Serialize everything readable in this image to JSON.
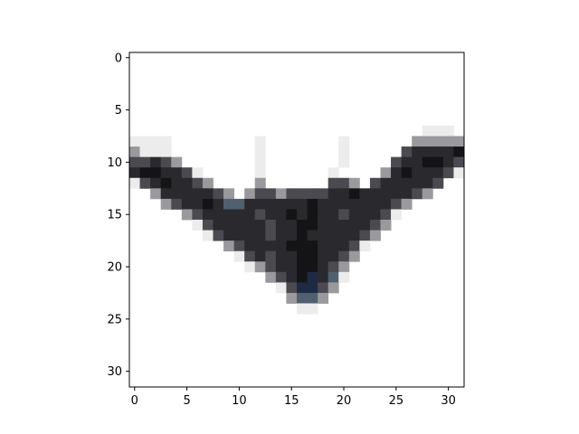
{
  "image": {
    "description_free": true,
    "grid_size": [
      32,
      32
    ],
    "x_ticks": [
      {
        "value": 0,
        "label": "0"
      },
      {
        "value": 5,
        "label": "5"
      },
      {
        "value": 10,
        "label": "10"
      },
      {
        "value": 15,
        "label": "15"
      },
      {
        "value": 20,
        "label": "20"
      },
      {
        "value": 25,
        "label": "25"
      },
      {
        "value": 30,
        "label": "30"
      }
    ],
    "y_ticks": [
      {
        "value": 0,
        "label": "0"
      },
      {
        "value": 5,
        "label": "5"
      },
      {
        "value": 10,
        "label": "10"
      },
      {
        "value": 15,
        "label": "15"
      },
      {
        "value": 20,
        "label": "20"
      },
      {
        "value": 25,
        "label": "25"
      },
      {
        "value": 30,
        "label": "30"
      }
    ],
    "colors": {
      "background": "#ffffff",
      "dark": "#2a2a2e",
      "darkest": "#141416",
      "mid": "#4a4a50",
      "light": "#9a9a9e",
      "faint": "#ececec",
      "blue_tint": "#1e2a44",
      "slate": "#50606e"
    },
    "pixels": [
      [
        0,
        8,
        "faint"
      ],
      [
        1,
        8,
        "faint"
      ],
      [
        2,
        8,
        "faint"
      ],
      [
        3,
        8,
        "faint"
      ],
      [
        12,
        8,
        "faint"
      ],
      [
        20,
        8,
        "faint"
      ],
      [
        27,
        8,
        "faint"
      ],
      [
        28,
        8,
        "faint"
      ],
      [
        29,
        8,
        "faint"
      ],
      [
        30,
        8,
        "faint"
      ],
      [
        28,
        7,
        "faint"
      ],
      [
        29,
        7,
        "faint"
      ],
      [
        30,
        7,
        "faint"
      ],
      [
        27,
        8,
        "light"
      ],
      [
        28,
        8,
        "light"
      ],
      [
        29,
        8,
        "light"
      ],
      [
        30,
        8,
        "light"
      ],
      [
        31,
        8,
        "light"
      ],
      [
        0,
        9,
        "light"
      ],
      [
        1,
        9,
        "faint"
      ],
      [
        2,
        9,
        "faint"
      ],
      [
        3,
        9,
        "faint"
      ],
      [
        12,
        9,
        "faint"
      ],
      [
        20,
        9,
        "faint"
      ],
      [
        26,
        9,
        "mid"
      ],
      [
        27,
        9,
        "dark"
      ],
      [
        28,
        9,
        "dark"
      ],
      [
        29,
        9,
        "dark"
      ],
      [
        30,
        9,
        "dark"
      ],
      [
        31,
        9,
        "darkest"
      ],
      [
        0,
        10,
        "mid"
      ],
      [
        1,
        10,
        "mid"
      ],
      [
        2,
        10,
        "dark"
      ],
      [
        3,
        10,
        "mid"
      ],
      [
        4,
        10,
        "light"
      ],
      [
        12,
        10,
        "faint"
      ],
      [
        20,
        10,
        "faint"
      ],
      [
        25,
        10,
        "mid"
      ],
      [
        26,
        10,
        "dark"
      ],
      [
        27,
        10,
        "dark"
      ],
      [
        28,
        10,
        "darkest"
      ],
      [
        29,
        10,
        "darkest"
      ],
      [
        30,
        10,
        "dark"
      ],
      [
        31,
        10,
        "mid"
      ],
      [
        0,
        11,
        "dark"
      ],
      [
        1,
        11,
        "darkest"
      ],
      [
        2,
        11,
        "darkest"
      ],
      [
        3,
        11,
        "dark"
      ],
      [
        4,
        11,
        "dark"
      ],
      [
        5,
        11,
        "mid"
      ],
      [
        6,
        11,
        "faint"
      ],
      [
        12,
        11,
        "faint"
      ],
      [
        19,
        11,
        "faint"
      ],
      [
        24,
        11,
        "light"
      ],
      [
        25,
        11,
        "dark"
      ],
      [
        26,
        11,
        "darkest"
      ],
      [
        27,
        11,
        "dark"
      ],
      [
        28,
        11,
        "dark"
      ],
      [
        29,
        11,
        "dark"
      ],
      [
        30,
        11,
        "mid"
      ],
      [
        31,
        11,
        "faint"
      ],
      [
        0,
        12,
        "faint"
      ],
      [
        1,
        12,
        "mid"
      ],
      [
        2,
        12,
        "dark"
      ],
      [
        3,
        12,
        "darkest"
      ],
      [
        4,
        12,
        "dark"
      ],
      [
        5,
        12,
        "dark"
      ],
      [
        6,
        12,
        "mid"
      ],
      [
        7,
        12,
        "light"
      ],
      [
        12,
        12,
        "light"
      ],
      [
        19,
        12,
        "mid"
      ],
      [
        20,
        12,
        "mid"
      ],
      [
        21,
        12,
        "light"
      ],
      [
        23,
        12,
        "mid"
      ],
      [
        24,
        12,
        "dark"
      ],
      [
        25,
        12,
        "dark"
      ],
      [
        26,
        12,
        "dark"
      ],
      [
        27,
        12,
        "dark"
      ],
      [
        28,
        12,
        "dark"
      ],
      [
        29,
        12,
        "mid"
      ],
      [
        2,
        13,
        "light"
      ],
      [
        3,
        13,
        "dark"
      ],
      [
        4,
        13,
        "dark"
      ],
      [
        5,
        13,
        "dark"
      ],
      [
        6,
        13,
        "dark"
      ],
      [
        7,
        13,
        "dark"
      ],
      [
        8,
        13,
        "mid"
      ],
      [
        9,
        13,
        "light"
      ],
      [
        11,
        13,
        "light"
      ],
      [
        12,
        13,
        "mid"
      ],
      [
        13,
        13,
        "mid"
      ],
      [
        14,
        13,
        "light"
      ],
      [
        15,
        13,
        "mid"
      ],
      [
        16,
        13,
        "mid"
      ],
      [
        17,
        13,
        "mid"
      ],
      [
        18,
        13,
        "mid"
      ],
      [
        19,
        13,
        "dark"
      ],
      [
        20,
        13,
        "dark"
      ],
      [
        21,
        13,
        "darkest"
      ],
      [
        22,
        13,
        "dark"
      ],
      [
        23,
        13,
        "dark"
      ],
      [
        24,
        13,
        "dark"
      ],
      [
        25,
        13,
        "dark"
      ],
      [
        26,
        13,
        "dark"
      ],
      [
        27,
        13,
        "mid"
      ],
      [
        28,
        13,
        "light"
      ],
      [
        3,
        14,
        "light"
      ],
      [
        4,
        14,
        "mid"
      ],
      [
        5,
        14,
        "dark"
      ],
      [
        6,
        14,
        "dark"
      ],
      [
        7,
        14,
        "darkest"
      ],
      [
        8,
        14,
        "dark"
      ],
      [
        9,
        14,
        "slate"
      ],
      [
        10,
        14,
        "slate"
      ],
      [
        11,
        14,
        "dark"
      ],
      [
        12,
        14,
        "dark"
      ],
      [
        13,
        14,
        "dark"
      ],
      [
        14,
        14,
        "dark"
      ],
      [
        15,
        14,
        "dark"
      ],
      [
        16,
        14,
        "dark"
      ],
      [
        17,
        14,
        "darkest"
      ],
      [
        18,
        14,
        "dark"
      ],
      [
        19,
        14,
        "dark"
      ],
      [
        20,
        14,
        "dark"
      ],
      [
        21,
        14,
        "dark"
      ],
      [
        22,
        14,
        "dark"
      ],
      [
        23,
        14,
        "dark"
      ],
      [
        24,
        14,
        "dark"
      ],
      [
        25,
        14,
        "mid"
      ],
      [
        26,
        14,
        "light"
      ],
      [
        5,
        15,
        "light"
      ],
      [
        6,
        15,
        "mid"
      ],
      [
        7,
        15,
        "dark"
      ],
      [
        8,
        15,
        "dark"
      ],
      [
        9,
        15,
        "dark"
      ],
      [
        10,
        15,
        "dark"
      ],
      [
        11,
        15,
        "dark"
      ],
      [
        12,
        15,
        "mid"
      ],
      [
        13,
        15,
        "dark"
      ],
      [
        14,
        15,
        "dark"
      ],
      [
        15,
        15,
        "darkest"
      ],
      [
        16,
        15,
        "dark"
      ],
      [
        17,
        15,
        "darkest"
      ],
      [
        18,
        15,
        "dark"
      ],
      [
        19,
        15,
        "dark"
      ],
      [
        20,
        15,
        "mid"
      ],
      [
        21,
        15,
        "dark"
      ],
      [
        22,
        15,
        "dark"
      ],
      [
        23,
        15,
        "dark"
      ],
      [
        24,
        15,
        "mid"
      ],
      [
        25,
        15,
        "faint"
      ],
      [
        6,
        16,
        "faint"
      ],
      [
        7,
        16,
        "mid"
      ],
      [
        8,
        16,
        "dark"
      ],
      [
        9,
        16,
        "dark"
      ],
      [
        10,
        16,
        "dark"
      ],
      [
        11,
        16,
        "dark"
      ],
      [
        12,
        16,
        "dark"
      ],
      [
        13,
        16,
        "mid"
      ],
      [
        14,
        16,
        "dark"
      ],
      [
        15,
        16,
        "dark"
      ],
      [
        16,
        16,
        "darkest"
      ],
      [
        17,
        16,
        "darkest"
      ],
      [
        18,
        16,
        "dark"
      ],
      [
        19,
        16,
        "dark"
      ],
      [
        20,
        16,
        "dark"
      ],
      [
        21,
        16,
        "dark"
      ],
      [
        22,
        16,
        "dark"
      ],
      [
        23,
        16,
        "mid"
      ],
      [
        24,
        16,
        "light"
      ],
      [
        7,
        17,
        "faint"
      ],
      [
        8,
        17,
        "mid"
      ],
      [
        9,
        17,
        "dark"
      ],
      [
        10,
        17,
        "dark"
      ],
      [
        11,
        17,
        "dark"
      ],
      [
        12,
        17,
        "dark"
      ],
      [
        13,
        17,
        "mid"
      ],
      [
        14,
        17,
        "dark"
      ],
      [
        15,
        17,
        "dark"
      ],
      [
        16,
        17,
        "darkest"
      ],
      [
        17,
        17,
        "dark"
      ],
      [
        18,
        17,
        "dark"
      ],
      [
        19,
        17,
        "dark"
      ],
      [
        20,
        17,
        "dark"
      ],
      [
        21,
        17,
        "dark"
      ],
      [
        22,
        17,
        "mid"
      ],
      [
        23,
        17,
        "light"
      ],
      [
        9,
        18,
        "light"
      ],
      [
        10,
        18,
        "mid"
      ],
      [
        11,
        18,
        "dark"
      ],
      [
        12,
        18,
        "dark"
      ],
      [
        13,
        18,
        "dark"
      ],
      [
        14,
        18,
        "dark"
      ],
      [
        15,
        18,
        "darkest"
      ],
      [
        16,
        18,
        "darkest"
      ],
      [
        17,
        18,
        "darkest"
      ],
      [
        18,
        18,
        "dark"
      ],
      [
        19,
        18,
        "dark"
      ],
      [
        20,
        18,
        "dark"
      ],
      [
        21,
        18,
        "mid"
      ],
      [
        22,
        18,
        "faint"
      ],
      [
        10,
        19,
        "faint"
      ],
      [
        11,
        19,
        "mid"
      ],
      [
        12,
        19,
        "dark"
      ],
      [
        13,
        19,
        "mid"
      ],
      [
        14,
        19,
        "dark"
      ],
      [
        15,
        19,
        "dark"
      ],
      [
        16,
        19,
        "darkest"
      ],
      [
        17,
        19,
        "darkest"
      ],
      [
        18,
        19,
        "dark"
      ],
      [
        19,
        19,
        "dark"
      ],
      [
        20,
        19,
        "mid"
      ],
      [
        21,
        19,
        "light"
      ],
      [
        11,
        20,
        "faint"
      ],
      [
        12,
        20,
        "light"
      ],
      [
        13,
        20,
        "mid"
      ],
      [
        14,
        20,
        "dark"
      ],
      [
        15,
        20,
        "dark"
      ],
      [
        16,
        20,
        "darkest"
      ],
      [
        17,
        20,
        "darkest"
      ],
      [
        18,
        20,
        "dark"
      ],
      [
        19,
        20,
        "mid"
      ],
      [
        20,
        20,
        "light"
      ],
      [
        13,
        21,
        "light"
      ],
      [
        14,
        21,
        "mid"
      ],
      [
        15,
        21,
        "dark"
      ],
      [
        16,
        21,
        "darkest"
      ],
      [
        17,
        21,
        "blue_tint"
      ],
      [
        18,
        21,
        "dark"
      ],
      [
        19,
        21,
        "slate"
      ],
      [
        20,
        21,
        "faint"
      ],
      [
        14,
        22,
        "faint"
      ],
      [
        15,
        22,
        "mid"
      ],
      [
        16,
        22,
        "blue_tint"
      ],
      [
        17,
        22,
        "blue_tint"
      ],
      [
        18,
        22,
        "mid"
      ],
      [
        19,
        22,
        "light"
      ],
      [
        15,
        23,
        "light"
      ],
      [
        16,
        23,
        "slate"
      ],
      [
        17,
        23,
        "slate"
      ],
      [
        18,
        23,
        "light"
      ],
      [
        16,
        24,
        "faint"
      ],
      [
        17,
        24,
        "faint"
      ]
    ]
  }
}
